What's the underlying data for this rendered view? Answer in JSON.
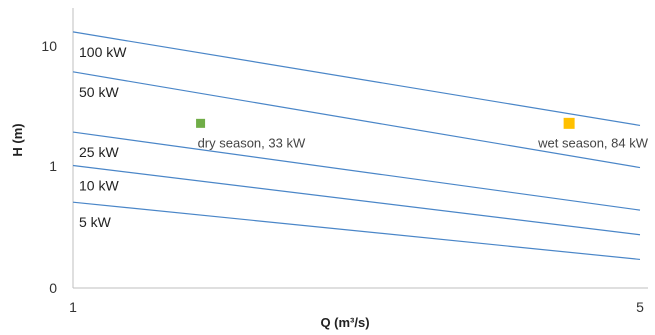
{
  "chart_data": {
    "type": "line",
    "title": "",
    "xlabel": "Q (m³/s)",
    "ylabel": "H (m)",
    "xlim": [
      1,
      5
    ],
    "x_ticks": [
      "1",
      "5"
    ],
    "y_ticks": [
      "0",
      "1",
      "10"
    ],
    "series": [
      {
        "name": "100 kW",
        "x": [
          1,
          5
        ],
        "y": [
          13.5,
          2.9
        ],
        "color": "#4a86c8"
      },
      {
        "name": "50 kW",
        "x": [
          1,
          5
        ],
        "y": [
          7.0,
          1.45
        ],
        "color": "#4a86c8"
      },
      {
        "name": "25 kW",
        "x": [
          1,
          5
        ],
        "y": [
          2.6,
          0.72
        ],
        "color": "#4a86c8"
      },
      {
        "name": "10 kW",
        "x": [
          1,
          5
        ],
        "y": [
          1.5,
          0.48
        ],
        "color": "#4a86c8"
      },
      {
        "name": "5 kW",
        "x": [
          1,
          5
        ],
        "y": [
          0.82,
          0.32
        ],
        "color": "#4a86c8"
      }
    ],
    "points": [
      {
        "label": "dry season, 33 kW",
        "x": 1.9,
        "y": 3.0,
        "color": "#70ad47"
      },
      {
        "label": "wet season, 84 kW",
        "x": 4.5,
        "y": 3.0,
        "color": "#ffc000"
      }
    ]
  }
}
